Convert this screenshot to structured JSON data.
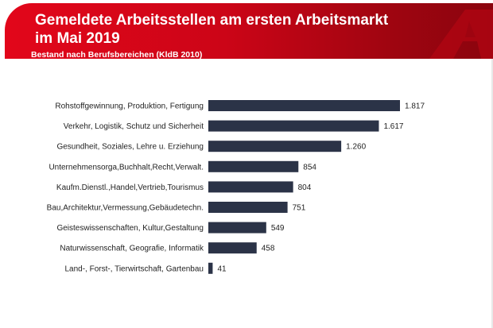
{
  "header": {
    "title_line1": "Gemeldete Arbeitsstellen am ersten Arbeitsmarkt",
    "title_line2": "im Mai 2019",
    "subtitle": "Bestand nach Berufsbereichen (KldB 2010)"
  },
  "colors": {
    "brand_red": "#e2061a",
    "bar": "#2b3347"
  },
  "chart_data": {
    "type": "bar",
    "orientation": "horizontal",
    "title": "Gemeldete Arbeitsstellen am ersten Arbeitsmarkt im Mai 2019",
    "subtitle": "Bestand nach Berufsbereichen (KldB 2010)",
    "categories": [
      "Rohstoffgewinnung, Produktion, Fertigung",
      "Verkehr, Logistik, Schutz und Sicherheit",
      "Gesundheit, Soziales, Lehre u. Erziehung",
      "Unternehmensorga,Buchhalt,Recht,Verwalt.",
      "Kaufm.Dienstl.,Handel,Vertrieb,Tourismus",
      "Bau,Architektur,Vermessung,Gebäudetechn.",
      "Geisteswissenschaften, Kultur,Gestaltung",
      "Naturwissenschaft, Geografie, Informatik",
      "Land-, Forst-, Tierwirtschaft, Gartenbau"
    ],
    "values": [
      1817,
      1617,
      1260,
      854,
      804,
      751,
      549,
      458,
      41
    ],
    "value_labels": [
      "1.817",
      "1.617",
      "1.260",
      "854",
      "804",
      "751",
      "549",
      "458",
      "41"
    ],
    "xlim": [
      0,
      1817
    ],
    "grid": false,
    "legend": "none"
  }
}
